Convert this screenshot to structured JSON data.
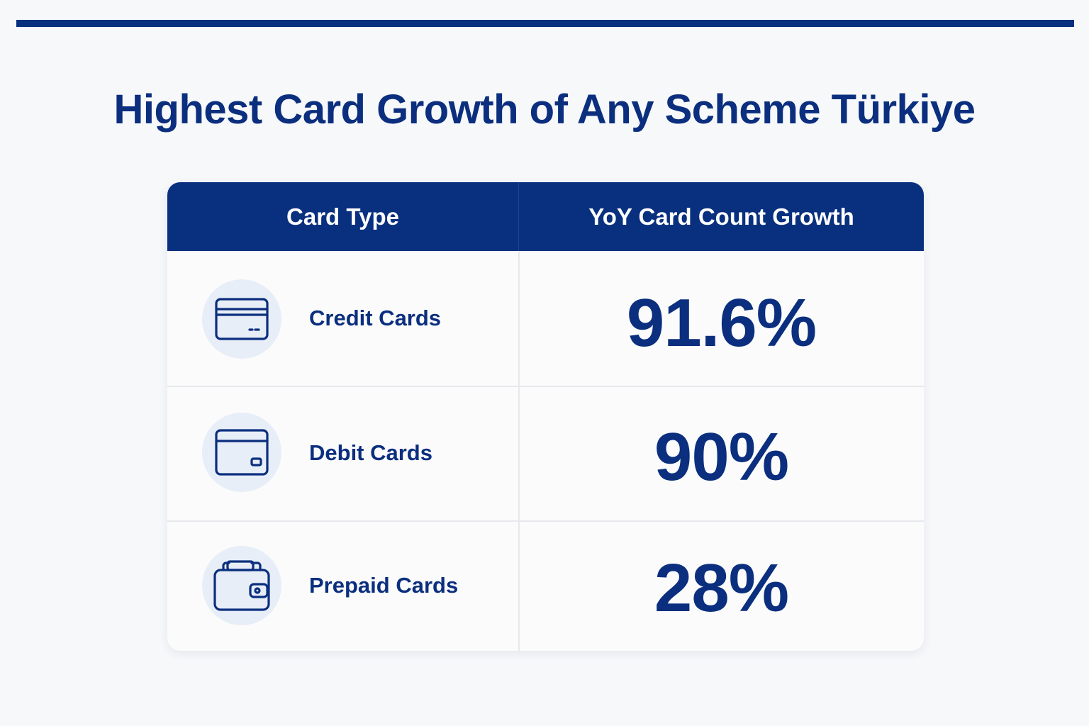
{
  "title": "Highest Card Growth of Any Scheme Türkiye",
  "colors": {
    "brand_navy": "#08307f",
    "text_navy": "#0b2f7e",
    "icon_circle_bg": "#e8eef8",
    "page_bg": "#f7f8fa"
  },
  "table": {
    "headers": {
      "card_type": "Card Type",
      "growth": "YoY Card Count Growth"
    },
    "rows": [
      {
        "label": "Credit Cards",
        "icon": "credit-card-icon",
        "value": "91.6%"
      },
      {
        "label": "Debit Cards",
        "icon": "debit-card-icon",
        "value": "90%"
      },
      {
        "label": "Prepaid Cards",
        "icon": "wallet-icon",
        "value": "28%"
      }
    ]
  }
}
